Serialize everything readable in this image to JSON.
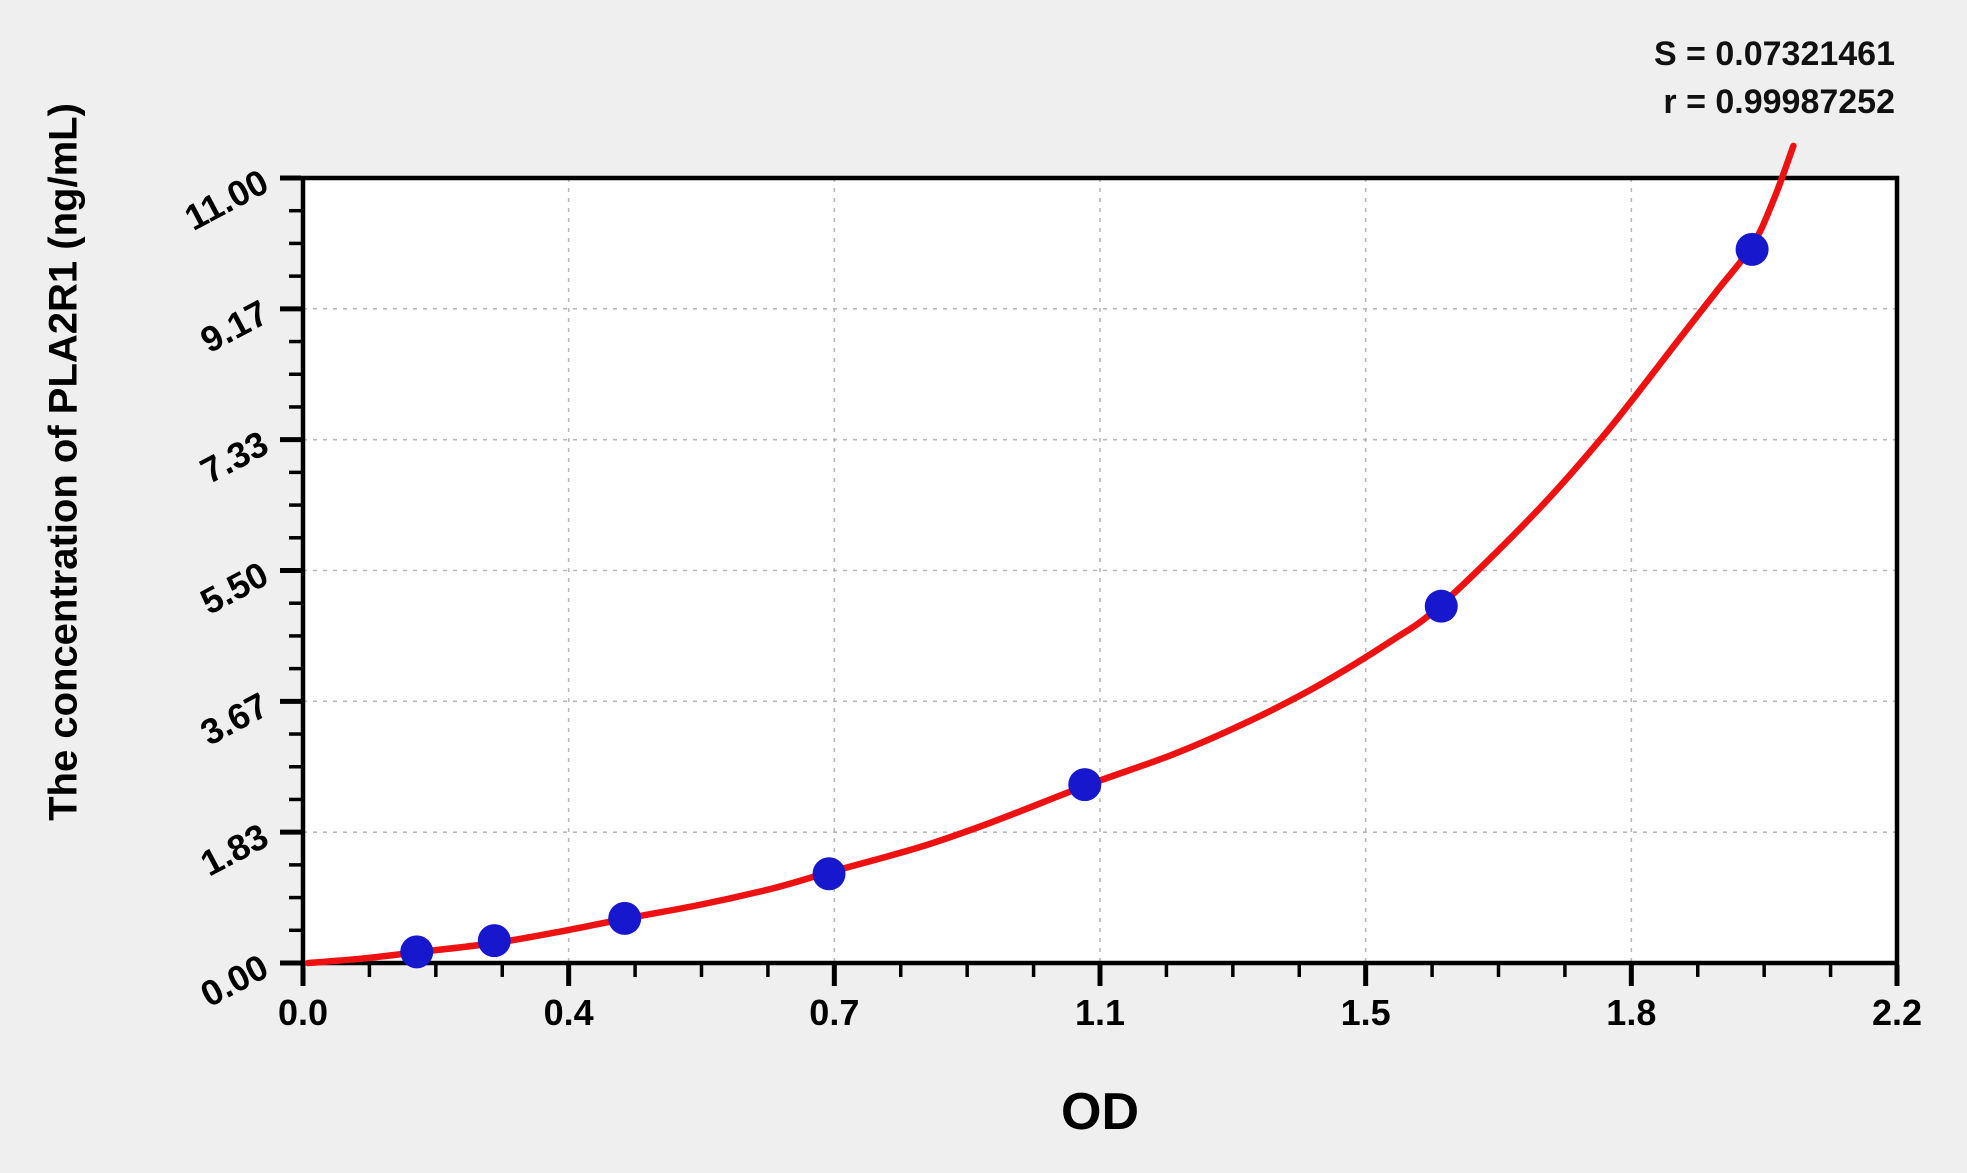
{
  "page": {
    "background_color": "#efefef",
    "plot_background_color": "#ffffff"
  },
  "chart_data": {
    "type": "scatter",
    "title": "",
    "xlabel": "OD",
    "ylabel": "The concentration of PLA2R1 (ng/mL)",
    "stats": {
      "s": "S = 0.07321461",
      "r": "r = 0.99987252"
    },
    "x_axis": {
      "min": 0,
      "max": 2.2,
      "tick_labels": [
        "0.0",
        "0.4",
        "0.7",
        "1.1",
        "1.5",
        "1.8",
        "2.2"
      ],
      "minor_ticks_between_major": 3
    },
    "y_axis": {
      "min": 0,
      "max": 11,
      "tick_labels": [
        "0.00",
        "1.83",
        "3.67",
        "5.50",
        "7.33",
        "9.17",
        "11.00"
      ],
      "minor_ticks_between_major": 3
    },
    "grid": {
      "show": true,
      "style": "dashed",
      "color": "#b9b9b9"
    },
    "legend": {
      "show": false
    },
    "series": [
      {
        "name": "standard-points",
        "type": "scatter",
        "marker": "circle",
        "color": "#1717cd",
        "points": [
          {
            "od": 0.157,
            "conc": 0.156
          },
          {
            "od": 0.264,
            "conc": 0.313
          },
          {
            "od": 0.444,
            "conc": 0.625
          },
          {
            "od": 0.726,
            "conc": 1.25
          },
          {
            "od": 1.079,
            "conc": 2.5
          },
          {
            "od": 1.571,
            "conc": 5.0
          },
          {
            "od": 2.0,
            "conc": 10.0
          }
        ]
      },
      {
        "name": "fit-curve",
        "type": "line",
        "color": "#ee1111",
        "samples": [
          [
            0.007,
            0.0
          ],
          [
            0.08,
            0.06
          ],
          [
            0.157,
            0.15
          ],
          [
            0.264,
            0.28
          ],
          [
            0.36,
            0.45
          ],
          [
            0.444,
            0.62
          ],
          [
            0.55,
            0.82
          ],
          [
            0.65,
            1.05
          ],
          [
            0.726,
            1.27
          ],
          [
            0.85,
            1.62
          ],
          [
            0.95,
            1.97
          ],
          [
            1.079,
            2.48
          ],
          [
            1.2,
            2.92
          ],
          [
            1.3,
            3.36
          ],
          [
            1.4,
            3.88
          ],
          [
            1.5,
            4.5
          ],
          [
            1.571,
            5.02
          ],
          [
            1.7,
            6.3
          ],
          [
            1.8,
            7.45
          ],
          [
            1.9,
            8.75
          ],
          [
            1.95,
            9.4
          ],
          [
            2.0,
            10.05
          ],
          [
            2.03,
            10.7
          ],
          [
            2.057,
            11.45
          ]
        ]
      }
    ]
  }
}
